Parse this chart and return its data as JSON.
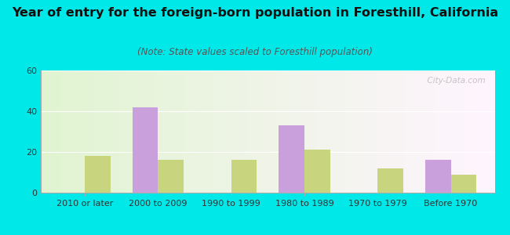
{
  "title": "Year of entry for the foreign-born population in Foresthill, California",
  "subtitle": "(Note: State values scaled to Foresthill population)",
  "categories": [
    "2010 or later",
    "2000 to 2009",
    "1990 to 1999",
    "1980 to 1989",
    "1970 to 1979",
    "Before 1970"
  ],
  "foresthill_values": [
    0,
    42,
    0,
    33,
    0,
    16
  ],
  "california_values": [
    18,
    16,
    16,
    21,
    12,
    9
  ],
  "foresthill_color": "#c9a0dc",
  "california_color": "#c8d47e",
  "background_outer": "#00e8e8",
  "ylim": [
    0,
    60
  ],
  "yticks": [
    0,
    20,
    40,
    60
  ],
  "bar_width": 0.35,
  "title_fontsize": 11.5,
  "subtitle_fontsize": 8.5,
  "tick_fontsize": 8,
  "legend_fontsize": 9,
  "watermark": "  City-Data.com"
}
